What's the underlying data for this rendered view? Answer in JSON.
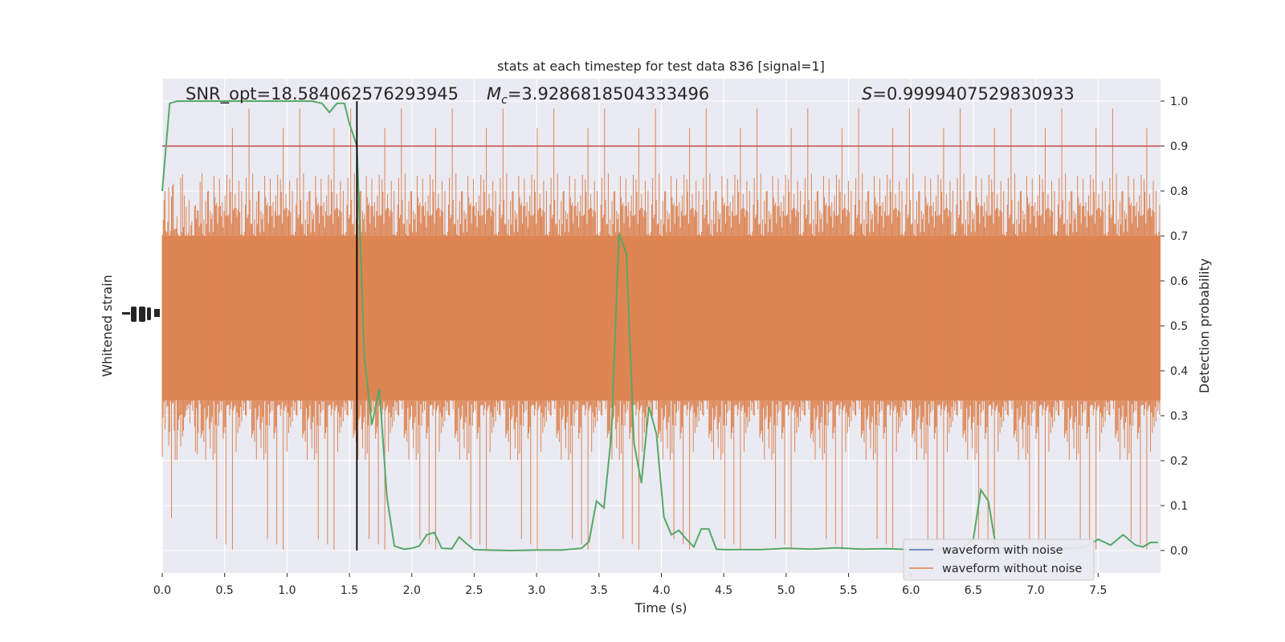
{
  "chart_data": {
    "type": "line",
    "title": "stats at each timestep for test data 836 [signal=1]",
    "xlabel": "Time (s)",
    "ylabel_left": "Whitened strain",
    "ylabel_right": "Detection probability",
    "xlim": [
      0,
      8.0
    ],
    "ylim_right": [
      -0.05,
      1.05
    ],
    "x_ticks": [
      0.0,
      0.5,
      1.0,
      1.5,
      2.0,
      2.5,
      3.0,
      3.5,
      4.0,
      4.5,
      5.0,
      5.5,
      6.0,
      6.5,
      7.0,
      7.5
    ],
    "x_tick_labels": [
      "0.0",
      "0.5",
      "1.0",
      "1.5",
      "2.0",
      "2.5",
      "3.0",
      "3.5",
      "4.0",
      "4.5",
      "5.0",
      "5.5",
      "6.0",
      "6.5",
      "7.0",
      "7.5"
    ],
    "y_ticks_right": [
      0.0,
      0.1,
      0.2,
      0.3,
      0.4,
      0.5,
      0.6,
      0.7,
      0.8,
      0.9,
      1.0
    ],
    "y_tick_labels_right": [
      "0.0",
      "0.1",
      "0.2",
      "0.3",
      "0.4",
      "0.5",
      "0.6",
      "0.7",
      "0.8",
      "0.9",
      "1.0"
    ],
    "grid": true,
    "legend_position": "lower-right",
    "annotations": {
      "snr": "SNR_opt=18.584062576293945",
      "mc_symbol": "M",
      "mc_subscript": "c",
      "mc_value": "=3.9286818504333496",
      "s_symbol": "S",
      "s_value": "=0.9999407529830933"
    },
    "threshold": 0.9,
    "event_time": 1.56,
    "series": [
      {
        "name": "waveform with noise",
        "color": "#4c72b0",
        "style": "line"
      },
      {
        "name": "waveform without noise",
        "color": "#dd8452",
        "style": "noise-band",
        "core_range": [
          0.335,
          0.7
        ],
        "spike_max": 1.0,
        "spike_min": 0.0
      }
    ],
    "detection_probability": {
      "color": "#55a868",
      "x": [
        0.0,
        0.06,
        0.12,
        0.2,
        0.3,
        0.4,
        0.5,
        0.6,
        0.7,
        0.8,
        0.9,
        1.0,
        1.1,
        1.2,
        1.28,
        1.34,
        1.4,
        1.46,
        1.5,
        1.56,
        1.62,
        1.68,
        1.74,
        1.8,
        1.86,
        1.94,
        2.0,
        2.06,
        2.12,
        2.18,
        2.24,
        2.32,
        2.38,
        2.44,
        2.5,
        2.6,
        2.8,
        3.0,
        3.2,
        3.36,
        3.42,
        3.48,
        3.54,
        3.6,
        3.66,
        3.72,
        3.78,
        3.84,
        3.9,
        3.96,
        4.02,
        4.08,
        4.14,
        4.2,
        4.26,
        4.32,
        4.38,
        4.44,
        4.5,
        4.6,
        4.8,
        5.0,
        5.2,
        5.4,
        5.6,
        5.8,
        6.0,
        6.2,
        6.4,
        6.5,
        6.56,
        6.62,
        6.68,
        6.74,
        6.8,
        7.0,
        7.2,
        7.4,
        7.5,
        7.6,
        7.7,
        7.8,
        7.86,
        7.92,
        7.98
      ],
      "y": [
        0.8,
        0.995,
        1.0,
        1.0,
        1.0,
        1.0,
        1.0,
        1.0,
        1.0,
        1.0,
        1.0,
        1.0,
        1.0,
        1.0,
        0.995,
        0.975,
        0.995,
        0.995,
        0.95,
        0.9,
        0.43,
        0.28,
        0.36,
        0.12,
        0.01,
        0.003,
        0.005,
        0.01,
        0.035,
        0.04,
        0.005,
        0.004,
        0.03,
        0.015,
        0.002,
        0.001,
        0.0,
        0.001,
        0.001,
        0.005,
        0.02,
        0.11,
        0.095,
        0.26,
        0.705,
        0.66,
        0.24,
        0.15,
        0.32,
        0.26,
        0.075,
        0.035,
        0.045,
        0.025,
        0.008,
        0.048,
        0.048,
        0.003,
        0.002,
        0.002,
        0.002,
        0.005,
        0.003,
        0.006,
        0.003,
        0.004,
        0.002,
        0.003,
        0.003,
        0.025,
        0.135,
        0.11,
        0.01,
        0.004,
        0.005,
        0.004,
        0.003,
        0.008,
        0.025,
        0.012,
        0.035,
        0.012,
        0.008,
        0.018,
        0.018
      ]
    }
  }
}
